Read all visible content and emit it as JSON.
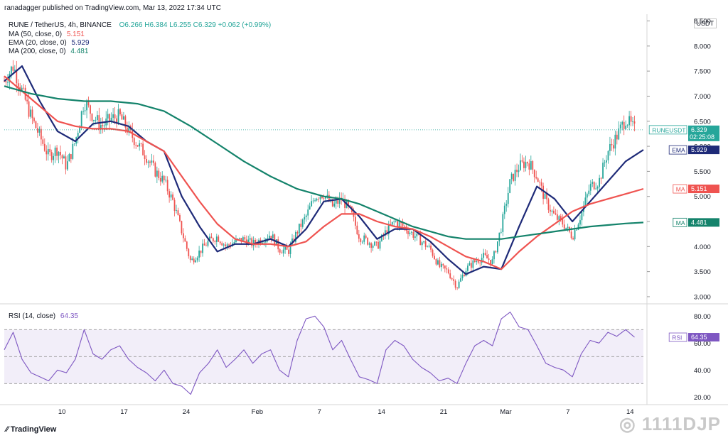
{
  "header": {
    "published_by": "ranadagger published on TradingView.com, Mar 13, 2022 17:34 UTC",
    "symbol_line": "RUNE / TetherUS, 4h, BINANCE",
    "ohlc": "O6.266 H6.384 L6.255 C6.329 +0.062 (+0.99%)",
    "currency": "USDT"
  },
  "indicators": [
    {
      "label": "MA (50, close, 0)",
      "value": "5.151",
      "color": "#ef5350"
    },
    {
      "label": "EMA (20, close, 0)",
      "value": "5.929",
      "color": "#1e2a78"
    },
    {
      "label": "MA (200, close, 0)",
      "value": "4.481",
      "color": "#14836b"
    }
  ],
  "rsi_header": {
    "label": "RSI (14, close)",
    "value": "64.35"
  },
  "footer": {
    "brand": "TradingView",
    "watermark": "1111DJP"
  },
  "chart_data": [
    {
      "type": "candlestick",
      "title": "RUNE / TetherUS, 4h, BINANCE",
      "y_ticks": [
        "8.500",
        "8.000",
        "7.500",
        "7.000",
        "6.500",
        "6.000",
        "5.500",
        "5.000",
        "4.500",
        "4.000",
        "3.500",
        "3.000"
      ],
      "ylim": [
        2.9,
        8.55
      ],
      "x_ticks": [
        "10",
        "17",
        "24",
        "Feb",
        "7",
        "14",
        "21",
        "Mar",
        "7",
        "14"
      ],
      "x_tick_pos": [
        6.5,
        13.5,
        20.5,
        28.5,
        35.5,
        42.5,
        49.5,
        56.5,
        63.5,
        70.5
      ],
      "x_range": [
        0,
        72
      ],
      "price_path": [
        [
          0,
          7.3
        ],
        [
          1,
          7.6
        ],
        [
          2,
          7.1
        ],
        [
          3,
          6.6
        ],
        [
          4,
          6.2
        ],
        [
          5,
          5.8
        ],
        [
          6,
          5.95
        ],
        [
          7,
          5.6
        ],
        [
          8,
          6.1
        ],
        [
          9,
          6.9
        ],
        [
          10,
          6.6
        ],
        [
          11,
          6.4
        ],
        [
          12,
          6.55
        ],
        [
          13,
          6.6
        ],
        [
          14,
          6.3
        ],
        [
          15,
          6.05
        ],
        [
          16,
          5.8
        ],
        [
          17,
          5.5
        ],
        [
          18,
          5.3
        ],
        [
          19,
          4.9
        ],
        [
          20,
          4.3
        ],
        [
          21,
          3.7
        ],
        [
          22,
          3.9
        ],
        [
          23,
          4.1
        ],
        [
          24,
          4.2
        ],
        [
          25,
          4.0
        ],
        [
          26,
          4.1
        ],
        [
          27,
          4.15
        ],
        [
          28,
          4.05
        ],
        [
          29,
          4.15
        ],
        [
          30,
          4.25
        ],
        [
          31,
          3.95
        ],
        [
          32,
          3.9
        ],
        [
          33,
          4.3
        ],
        [
          34,
          4.6
        ],
        [
          35,
          5.0
        ],
        [
          36,
          5.05
        ],
        [
          37,
          4.8
        ],
        [
          38,
          4.95
        ],
        [
          39,
          4.7
        ],
        [
          40,
          4.2
        ],
        [
          41,
          4.1
        ],
        [
          42,
          4.0
        ],
        [
          43,
          4.3
        ],
        [
          44,
          4.5
        ],
        [
          45,
          4.4
        ],
        [
          46,
          4.25
        ],
        [
          47,
          4.1
        ],
        [
          48,
          3.95
        ],
        [
          49,
          3.6
        ],
        [
          50,
          3.5
        ],
        [
          51,
          3.2
        ],
        [
          52,
          3.55
        ],
        [
          53,
          3.7
        ],
        [
          54,
          3.8
        ],
        [
          55,
          3.7
        ],
        [
          56,
          4.4
        ],
        [
          57,
          5.3
        ],
        [
          58,
          5.6
        ],
        [
          59,
          5.7
        ],
        [
          60,
          5.4
        ],
        [
          61,
          4.9
        ],
        [
          62,
          4.6
        ],
        [
          63,
          4.45
        ],
        [
          64,
          4.2
        ],
        [
          65,
          4.65
        ],
        [
          66,
          5.2
        ],
        [
          67,
          5.3
        ],
        [
          68,
          5.9
        ],
        [
          69,
          6.2
        ],
        [
          70,
          6.55
        ],
        [
          71,
          6.33
        ]
      ],
      "series": [
        {
          "name": "EMA (20, close, 0)",
          "color": "#1e2a78",
          "points": [
            [
              0,
              7.3
            ],
            [
              2,
              7.6
            ],
            [
              4,
              6.9
            ],
            [
              6,
              6.3
            ],
            [
              8,
              6.1
            ],
            [
              10,
              6.45
            ],
            [
              12,
              6.5
            ],
            [
              14,
              6.4
            ],
            [
              16,
              6.1
            ],
            [
              18,
              5.9
            ],
            [
              20,
              5.0
            ],
            [
              22,
              4.4
            ],
            [
              24,
              3.9
            ],
            [
              26,
              4.05
            ],
            [
              28,
              4.05
            ],
            [
              30,
              4.15
            ],
            [
              32,
              4.0
            ],
            [
              34,
              4.35
            ],
            [
              36,
              4.9
            ],
            [
              38,
              4.95
            ],
            [
              40,
              4.6
            ],
            [
              42,
              4.15
            ],
            [
              44,
              4.35
            ],
            [
              46,
              4.35
            ],
            [
              48,
              4.1
            ],
            [
              50,
              3.75
            ],
            [
              52,
              3.45
            ],
            [
              54,
              3.6
            ],
            [
              56,
              3.55
            ],
            [
              58,
              4.4
            ],
            [
              60,
              5.2
            ],
            [
              62,
              4.95
            ],
            [
              64,
              4.5
            ],
            [
              66,
              4.9
            ],
            [
              68,
              5.3
            ],
            [
              70,
              5.7
            ],
            [
              72,
              5.929
            ]
          ]
        },
        {
          "name": "MA (50, close, 0)",
          "color": "#ef5350",
          "points": [
            [
              0,
              7.4
            ],
            [
              2,
              7.1
            ],
            [
              4,
              6.8
            ],
            [
              6,
              6.5
            ],
            [
              8,
              6.4
            ],
            [
              10,
              6.35
            ],
            [
              12,
              6.35
            ],
            [
              14,
              6.3
            ],
            [
              16,
              6.1
            ],
            [
              18,
              5.9
            ],
            [
              20,
              5.4
            ],
            [
              22,
              4.9
            ],
            [
              24,
              4.45
            ],
            [
              26,
              4.15
            ],
            [
              28,
              4.05
            ],
            [
              30,
              4.05
            ],
            [
              32,
              4.0
            ],
            [
              34,
              4.1
            ],
            [
              36,
              4.4
            ],
            [
              38,
              4.65
            ],
            [
              40,
              4.65
            ],
            [
              42,
              4.5
            ],
            [
              44,
              4.4
            ],
            [
              46,
              4.35
            ],
            [
              48,
              4.2
            ],
            [
              50,
              4.0
            ],
            [
              52,
              3.8
            ],
            [
              54,
              3.7
            ],
            [
              56,
              3.55
            ],
            [
              58,
              3.9
            ],
            [
              60,
              4.2
            ],
            [
              62,
              4.45
            ],
            [
              64,
              4.7
            ],
            [
              66,
              4.85
            ],
            [
              68,
              4.95
            ],
            [
              70,
              5.05
            ],
            [
              72,
              5.151
            ]
          ]
        },
        {
          "name": "MA (200, close, 0)",
          "color": "#14836b",
          "points": [
            [
              0,
              7.2
            ],
            [
              3,
              7.05
            ],
            [
              6,
              6.95
            ],
            [
              9,
              6.9
            ],
            [
              12,
              6.9
            ],
            [
              15,
              6.85
            ],
            [
              18,
              6.7
            ],
            [
              21,
              6.4
            ],
            [
              24,
              6.05
            ],
            [
              27,
              5.7
            ],
            [
              30,
              5.4
            ],
            [
              33,
              5.15
            ],
            [
              36,
              5.0
            ],
            [
              38,
              4.95
            ],
            [
              40,
              4.85
            ],
            [
              42,
              4.7
            ],
            [
              44,
              4.55
            ],
            [
              46,
              4.4
            ],
            [
              48,
              4.3
            ],
            [
              50,
              4.2
            ],
            [
              52,
              4.15
            ],
            [
              54,
              4.15
            ],
            [
              56,
              4.15
            ],
            [
              58,
              4.2
            ],
            [
              60,
              4.25
            ],
            [
              62,
              4.3
            ],
            [
              64,
              4.35
            ],
            [
              66,
              4.4
            ],
            [
              68,
              4.43
            ],
            [
              70,
              4.46
            ],
            [
              72,
              4.481
            ]
          ]
        }
      ],
      "price_labels": [
        {
          "text": "RUNEUSDT",
          "value": "6.329",
          "time": "02:25:08",
          "color": "#26a69a",
          "y": 6.329
        },
        {
          "text": "EMA",
          "value": "5.929",
          "color": "#1e2a78",
          "y": 5.929
        },
        {
          "text": "MA",
          "value": "5.151",
          "color": "#ef5350",
          "y": 5.151
        },
        {
          "text": "MA",
          "value": "4.481",
          "color": "#14836b",
          "y": 4.481
        }
      ]
    },
    {
      "type": "line",
      "title": "RSI (14, close)",
      "y_ticks": [
        "80.00",
        "60.00",
        "40.00",
        "20.00"
      ],
      "ylim": [
        17,
        87
      ],
      "bands": [
        30,
        70
      ],
      "middle": 50,
      "series": [
        {
          "name": "RSI",
          "color": "#7e57c2",
          "points": [
            [
              0,
              55
            ],
            [
              1,
              68
            ],
            [
              2,
              48
            ],
            [
              3,
              38
            ],
            [
              4,
              35
            ],
            [
              5,
              32
            ],
            [
              6,
              40
            ],
            [
              7,
              38
            ],
            [
              8,
              48
            ],
            [
              9,
              70
            ],
            [
              10,
              52
            ],
            [
              11,
              48
            ],
            [
              12,
              55
            ],
            [
              13,
              58
            ],
            [
              14,
              48
            ],
            [
              15,
              42
            ],
            [
              16,
              38
            ],
            [
              17,
              32
            ],
            [
              18,
              40
            ],
            [
              19,
              30
            ],
            [
              20,
              28
            ],
            [
              21,
              22
            ],
            [
              22,
              38
            ],
            [
              23,
              45
            ],
            [
              24,
              55
            ],
            [
              25,
              42
            ],
            [
              26,
              48
            ],
            [
              27,
              55
            ],
            [
              28,
              45
            ],
            [
              29,
              52
            ],
            [
              30,
              55
            ],
            [
              31,
              40
            ],
            [
              32,
              35
            ],
            [
              33,
              62
            ],
            [
              34,
              78
            ],
            [
              35,
              80
            ],
            [
              36,
              72
            ],
            [
              37,
              55
            ],
            [
              38,
              62
            ],
            [
              39,
              48
            ],
            [
              40,
              35
            ],
            [
              41,
              33
            ],
            [
              42,
              30
            ],
            [
              43,
              55
            ],
            [
              44,
              62
            ],
            [
              45,
              58
            ],
            [
              46,
              48
            ],
            [
              47,
              42
            ],
            [
              48,
              38
            ],
            [
              49,
              32
            ],
            [
              50,
              34
            ],
            [
              51,
              30
            ],
            [
              52,
              45
            ],
            [
              53,
              58
            ],
            [
              54,
              62
            ],
            [
              55,
              58
            ],
            [
              56,
              78
            ],
            [
              57,
              83
            ],
            [
              58,
              72
            ],
            [
              59,
              70
            ],
            [
              60,
              58
            ],
            [
              61,
              45
            ],
            [
              62,
              42
            ],
            [
              63,
              40
            ],
            [
              64,
              35
            ],
            [
              65,
              52
            ],
            [
              66,
              62
            ],
            [
              67,
              60
            ],
            [
              68,
              68
            ],
            [
              69,
              65
            ],
            [
              70,
              70
            ],
            [
              71,
              64.35
            ]
          ]
        }
      ],
      "price_labels": [
        {
          "text": "RSI",
          "value": "64.35",
          "color": "#7e57c2",
          "y": 64.35
        }
      ]
    }
  ]
}
